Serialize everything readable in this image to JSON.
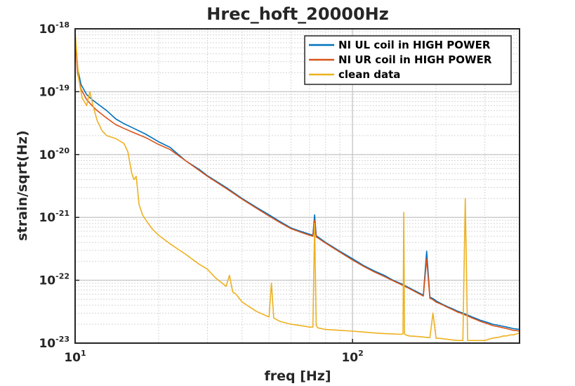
{
  "chart_data": {
    "type": "line",
    "title": "Hrec_hoft_20000Hz",
    "xlabel": "freq [Hz]",
    "ylabel": "strain/sqrt(Hz)",
    "xscale": "log",
    "yscale": "log",
    "xlim": [
      10,
      400
    ],
    "ylim": [
      1e-23,
      1e-18
    ],
    "x_ticks": [
      {
        "value": 10,
        "base": "10",
        "exp": "1"
      },
      {
        "value": 100,
        "base": "10",
        "exp": "2"
      }
    ],
    "y_ticks": [
      {
        "value": 1e-23,
        "base": "10",
        "exp": "-23"
      },
      {
        "value": 1e-22,
        "base": "10",
        "exp": "-22"
      },
      {
        "value": 1e-21,
        "base": "10",
        "exp": "-21"
      },
      {
        "value": 1e-20,
        "base": "10",
        "exp": "-20"
      },
      {
        "value": 1e-19,
        "base": "10",
        "exp": "-19"
      },
      {
        "value": 1e-18,
        "base": "10",
        "exp": "-18"
      }
    ],
    "grid": true,
    "legend_position": "top-right",
    "series": [
      {
        "name": "NI UL coil in HIGH POWER",
        "color": "#0072BD",
        "x": [
          10,
          10.2,
          10.5,
          11,
          11.5,
          12,
          13,
          14,
          15,
          16,
          18,
          20,
          22,
          25,
          28,
          30,
          35,
          40,
          45,
          50,
          55,
          60,
          65,
          70,
          72,
          73,
          74,
          75,
          80,
          90,
          100,
          110,
          120,
          130,
          140,
          150,
          160,
          170,
          180,
          185,
          190,
          195,
          200,
          210,
          220,
          230,
          240,
          245,
          250,
          260,
          270,
          280,
          290,
          300,
          310,
          320,
          330,
          340,
          350,
          360,
          370,
          380,
          390,
          400
        ],
        "y": [
          8e-19,
          2.4e-19,
          1.3e-19,
          9e-20,
          7.5e-20,
          6.5e-20,
          5e-20,
          3.7e-20,
          3.1e-20,
          2.7e-20,
          2.1e-20,
          1.6e-20,
          1.3e-20,
          8e-21,
          5.8e-21,
          4.6e-21,
          3e-21,
          2e-21,
          1.45e-21,
          1.1e-21,
          8.5e-22,
          6.8e-22,
          6e-22,
          5.4e-22,
          5.2e-22,
          1.1e-21,
          5.1e-22,
          4.9e-22,
          4e-22,
          2.9e-22,
          2.2e-22,
          1.7e-22,
          1.4e-22,
          1.2e-22,
          1e-22,
          8.8e-23,
          7.6e-23,
          6.6e-23,
          5.8e-23,
          2.9e-22,
          5.4e-23,
          5.1e-23,
          4.7e-23,
          4.2e-23,
          3.8e-23,
          3.5e-23,
          3.2e-23,
          3.1e-23,
          3e-23,
          2.8e-23,
          2.6e-23,
          2.45e-23,
          2.3e-23,
          2.2e-23,
          2.1e-23,
          2e-23,
          1.95e-23,
          1.9e-23,
          1.85e-23,
          1.8e-23,
          1.75e-23,
          1.7e-23,
          1.68e-23,
          1.65e-23
        ]
      },
      {
        "name": "NI UR coil in HIGH POWER",
        "color": "#D95319",
        "x": [
          10,
          10.2,
          10.5,
          11,
          11.5,
          12,
          13,
          14,
          15,
          16,
          18,
          20,
          22,
          25,
          28,
          30,
          35,
          40,
          45,
          50,
          55,
          60,
          65,
          70,
          72,
          73,
          74,
          75,
          80,
          90,
          100,
          110,
          120,
          130,
          140,
          150,
          160,
          170,
          180,
          185,
          190,
          195,
          200,
          210,
          220,
          230,
          240,
          245,
          250,
          260,
          270,
          280,
          290,
          300,
          310,
          320,
          330,
          340,
          350,
          360,
          370,
          380,
          390,
          400
        ],
        "y": [
          8e-19,
          2e-19,
          1.1e-19,
          7.5e-20,
          6e-20,
          5e-20,
          3.8e-20,
          3e-20,
          2.6e-20,
          2.3e-20,
          1.85e-20,
          1.45e-20,
          1.2e-20,
          8e-21,
          5.6e-21,
          4.5e-21,
          2.9e-21,
          1.95e-21,
          1.4e-21,
          1.05e-21,
          8.2e-22,
          6.6e-22,
          5.8e-22,
          5.2e-22,
          5e-22,
          9e-22,
          4.9e-22,
          4.7e-22,
          3.9e-22,
          2.8e-22,
          2.1e-22,
          1.65e-22,
          1.35e-22,
          1.15e-22,
          9.8e-23,
          8.5e-23,
          7.4e-23,
          6.4e-23,
          5.6e-23,
          2.2e-22,
          5.2e-23,
          4.9e-23,
          4.5e-23,
          4.1e-23,
          3.7e-23,
          3.4e-23,
          3.1e-23,
          3e-23,
          2.9e-23,
          2.7e-23,
          2.5e-23,
          2.35e-23,
          2.2e-23,
          2.1e-23,
          2e-23,
          1.9e-23,
          1.85e-23,
          1.8e-23,
          1.75e-23,
          1.7e-23,
          1.65e-23,
          1.6e-23,
          1.58e-23,
          1.55e-23
        ]
      },
      {
        "name": "clean data",
        "color": "#EDB120",
        "x": [
          10,
          10.3,
          10.6,
          11,
          11.3,
          11.6,
          12,
          12.5,
          13,
          14,
          15,
          15.5,
          16,
          16.3,
          16.6,
          17,
          17.5,
          18,
          19,
          20,
          22,
          25,
          28,
          30,
          32,
          35,
          36,
          37,
          38,
          40,
          45,
          50,
          51,
          52,
          55,
          60,
          65,
          70,
          72,
          73,
          74,
          75,
          80,
          90,
          100,
          110,
          120,
          130,
          140,
          150,
          152,
          153,
          154,
          155,
          160,
          170,
          180,
          190,
          195,
          200,
          210,
          220,
          230,
          240,
          250,
          255,
          260,
          270,
          280,
          290,
          300,
          320,
          340,
          350,
          360,
          370,
          380,
          390,
          400
        ],
        "y": [
          9e-19,
          1.6e-19,
          8e-20,
          6e-20,
          1e-19,
          6e-20,
          3.5e-20,
          2.4e-20,
          2e-20,
          1.8e-20,
          1.5e-20,
          1.1e-20,
          5e-21,
          4e-21,
          4.5e-21,
          1.6e-21,
          1.1e-21,
          9e-22,
          6.5e-22,
          5.2e-22,
          3.8e-22,
          2.6e-22,
          1.8e-22,
          1.5e-22,
          1.1e-22,
          8e-23,
          1.2e-22,
          6.5e-23,
          6e-23,
          4.5e-23,
          3.2e-23,
          2.6e-23,
          9e-23,
          2.5e-23,
          2.2e-23,
          2e-23,
          1.9e-23,
          1.8e-23,
          1.8e-23,
          8e-22,
          1.9e-23,
          1.75e-23,
          1.65e-23,
          1.6e-23,
          1.55e-23,
          1.5e-23,
          1.45e-23,
          1.42e-23,
          1.4e-23,
          1.38e-23,
          1.4e-23,
          1.2e-21,
          1.4e-23,
          1.36e-23,
          1.3e-23,
          1.28e-23,
          1.25e-23,
          1.22e-23,
          3e-23,
          1.2e-23,
          1.18e-23,
          1.15e-23,
          1.12e-23,
          1.1e-23,
          1.1e-23,
          2e-21,
          1.1e-23,
          1.1e-23,
          1.1e-23,
          1.1e-23,
          1.1e-23,
          1.2e-23,
          1.25e-23,
          1.3e-23,
          1.3e-23,
          1.35e-23,
          1.35e-23,
          1.4e-23,
          1.45e-23
        ]
      }
    ]
  }
}
